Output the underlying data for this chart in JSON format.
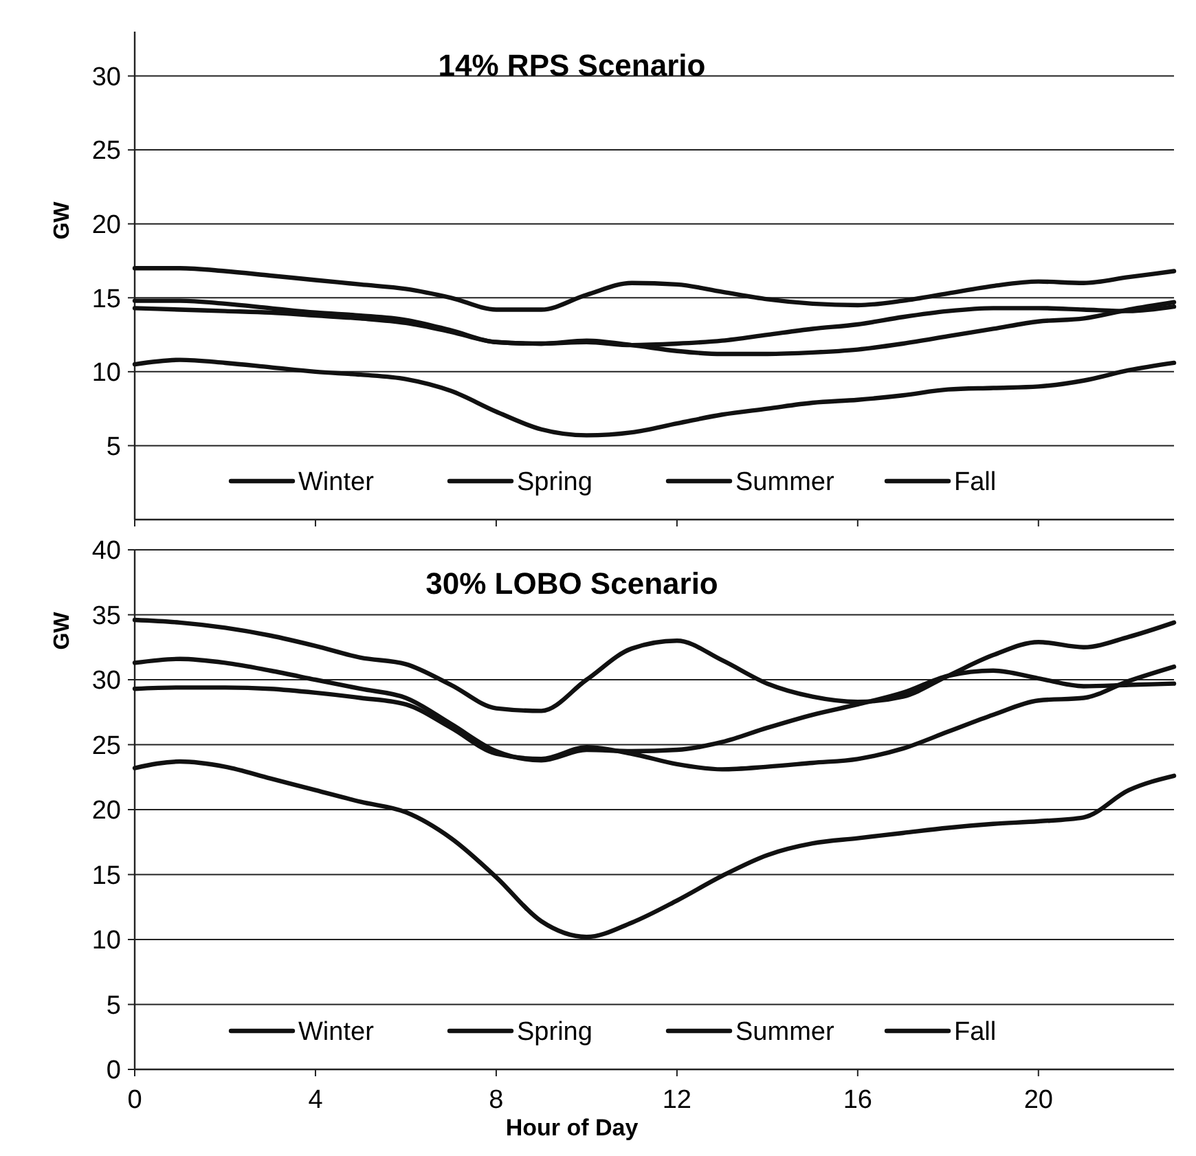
{
  "chart_data": [
    {
      "type": "line",
      "title": "14% RPS Scenario",
      "ylabel": "GW",
      "x": [
        0,
        1,
        2,
        3,
        4,
        5,
        6,
        7,
        8,
        9,
        10,
        11,
        12,
        13,
        14,
        15,
        16,
        17,
        18,
        19,
        20,
        21,
        22,
        23
      ],
      "xlim": [
        0,
        23
      ],
      "xticks": [
        0,
        4,
        8,
        12,
        16,
        20
      ],
      "ylim": [
        0,
        33
      ],
      "yticks": [
        5,
        10,
        15,
        20,
        25,
        30
      ],
      "grid": "y",
      "legend": "bottom",
      "tick_labels": "y",
      "line_style": "solid",
      "marker": "none",
      "series": [
        {
          "name": "Winter",
          "color": "#111111",
          "values": [
            14.8,
            14.8,
            14.6,
            14.3,
            14.0,
            13.8,
            13.5,
            12.8,
            12.0,
            11.9,
            12.0,
            11.8,
            11.9,
            12.1,
            12.5,
            12.9,
            13.2,
            13.7,
            14.1,
            14.3,
            14.3,
            14.2,
            14.1,
            14.4
          ]
        },
        {
          "name": "Spring",
          "color": "#111111",
          "values": [
            10.5,
            10.8,
            10.6,
            10.3,
            10.0,
            9.8,
            9.5,
            8.7,
            7.3,
            6.1,
            5.7,
            5.9,
            6.5,
            7.1,
            7.5,
            7.9,
            8.1,
            8.4,
            8.8,
            8.9,
            9.0,
            9.4,
            10.1,
            10.6
          ]
        },
        {
          "name": "Summer",
          "color": "#111111",
          "values": [
            17.0,
            17.0,
            16.8,
            16.5,
            16.2,
            15.9,
            15.6,
            15.0,
            14.2,
            14.2,
            15.2,
            16.0,
            15.9,
            15.4,
            14.9,
            14.6,
            14.5,
            14.8,
            15.3,
            15.8,
            16.1,
            16.0,
            16.4,
            16.8
          ]
        },
        {
          "name": "Fall",
          "color": "#111111",
          "values": [
            14.3,
            14.2,
            14.1,
            14.0,
            13.8,
            13.6,
            13.3,
            12.7,
            12.0,
            11.9,
            12.1,
            11.8,
            11.4,
            11.2,
            11.2,
            11.3,
            11.5,
            11.9,
            12.4,
            12.9,
            13.4,
            13.6,
            14.2,
            14.7
          ]
        }
      ]
    },
    {
      "type": "line",
      "title": "30% LOBO Scenario",
      "ylabel": "GW",
      "xlabel": "Hour of Day",
      "x": [
        0,
        1,
        2,
        3,
        4,
        5,
        6,
        7,
        8,
        9,
        10,
        11,
        12,
        13,
        14,
        15,
        16,
        17,
        18,
        19,
        20,
        21,
        22,
        23
      ],
      "xlim": [
        0,
        23
      ],
      "xticks": [
        0,
        4,
        8,
        12,
        16,
        20
      ],
      "ylim": [
        0,
        40
      ],
      "yticks": [
        0,
        5,
        10,
        15,
        20,
        25,
        30,
        35,
        40
      ],
      "grid": "y",
      "legend": "bottom",
      "line_style": "solid",
      "marker": "none",
      "series": [
        {
          "name": "Winter",
          "color": "#111111",
          "values": [
            31.3,
            31.6,
            31.3,
            30.7,
            30.0,
            29.3,
            28.6,
            26.6,
            24.5,
            23.8,
            24.6,
            24.5,
            24.6,
            25.2,
            26.3,
            27.3,
            28.1,
            29.0,
            30.3,
            30.7,
            30.1,
            29.5,
            29.6,
            29.7
          ]
        },
        {
          "name": "Spring",
          "color": "#111111",
          "values": [
            23.2,
            23.7,
            23.3,
            22.4,
            21.5,
            20.6,
            19.8,
            17.8,
            14.8,
            11.4,
            10.2,
            11.3,
            13.0,
            14.9,
            16.5,
            17.4,
            17.8,
            18.2,
            18.6,
            18.9,
            19.1,
            19.4,
            21.5,
            22.6
          ]
        },
        {
          "name": "Summer",
          "color": "#111111",
          "values": [
            34.6,
            34.4,
            34.0,
            33.4,
            32.6,
            31.7,
            31.2,
            29.6,
            27.8,
            27.6,
            30.0,
            32.4,
            33.0,
            31.5,
            29.7,
            28.7,
            28.3,
            28.7,
            30.3,
            31.9,
            32.9,
            32.5,
            33.3,
            34.4
          ]
        },
        {
          "name": "Fall",
          "color": "#111111",
          "values": [
            29.3,
            29.4,
            29.4,
            29.3,
            29.0,
            28.6,
            28.1,
            26.3,
            24.3,
            23.9,
            24.8,
            24.3,
            23.5,
            23.1,
            23.3,
            23.6,
            23.9,
            24.7,
            26.0,
            27.3,
            28.4,
            28.6,
            29.9,
            31.0
          ]
        }
      ]
    }
  ]
}
